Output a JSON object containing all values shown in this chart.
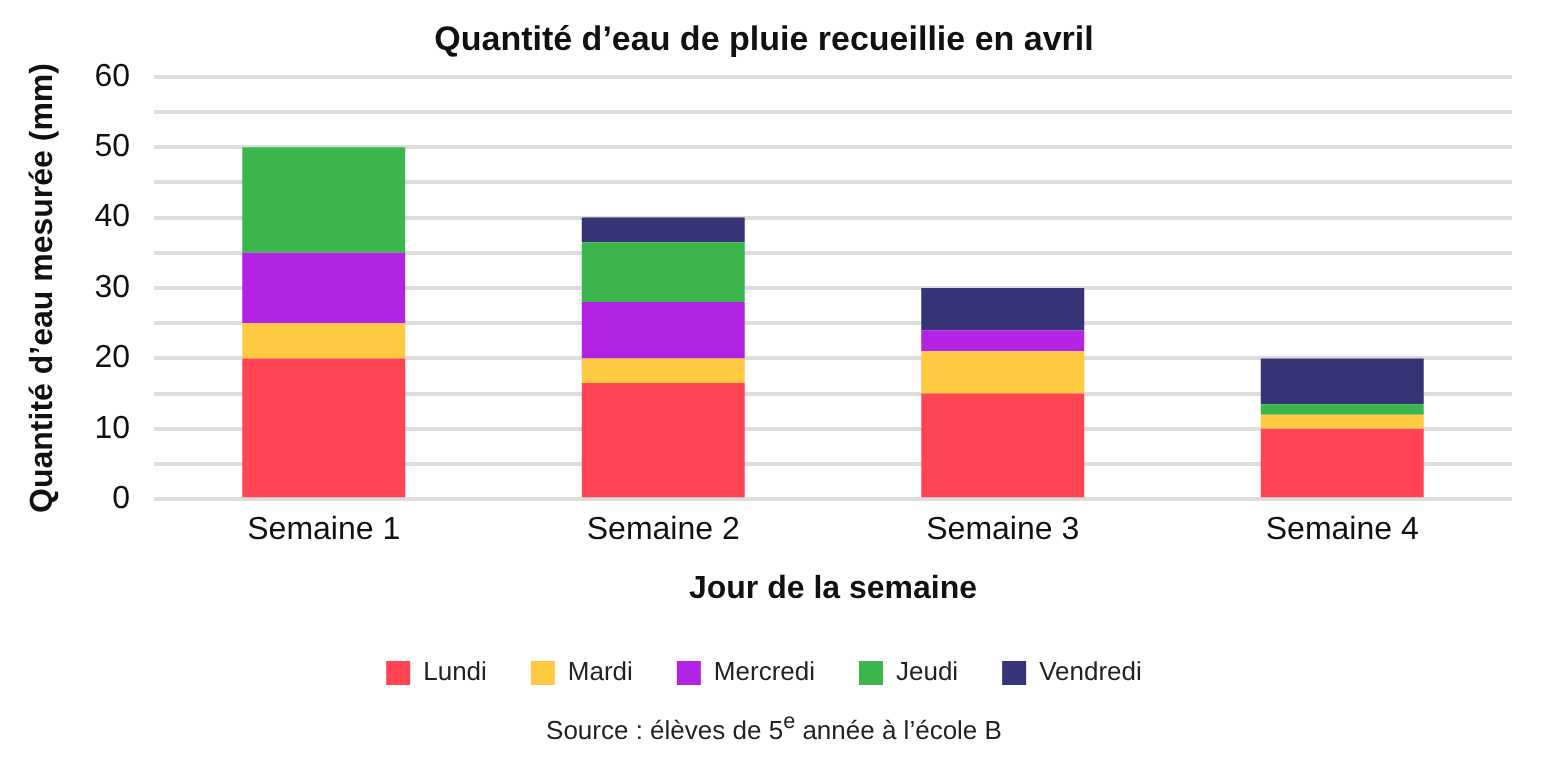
{
  "chart_data": {
    "type": "bar",
    "stacked": true,
    "title": "Quantité d’eau de pluie recueillie en avril",
    "xlabel": "Jour de la semaine",
    "ylabel": "Quantité d’eau mesurée (mm)",
    "categories": [
      "Semaine 1",
      "Semaine 2",
      "Semaine 3",
      "Semaine 4"
    ],
    "series": [
      {
        "name": "Lundi",
        "color": "#ff4554",
        "values": [
          20,
          16.5,
          15,
          10
        ]
      },
      {
        "name": "Mardi",
        "color": "#ffc942",
        "values": [
          5,
          3.5,
          6,
          2
        ]
      },
      {
        "name": "Mercredi",
        "color": "#b323e3",
        "values": [
          10,
          8,
          3,
          0
        ]
      },
      {
        "name": "Jeudi",
        "color": "#3cb64c",
        "values": [
          15,
          8.5,
          0,
          1.5
        ]
      },
      {
        "name": "Vendredi",
        "color": "#363377",
        "values": [
          0,
          3.5,
          6,
          6.5
        ]
      }
    ],
    "ylim": [
      0,
      60
    ],
    "yticks": [
      0,
      {
        "value": 5,
        "label": null
      },
      10,
      {
        "value": 15,
        "label": null
      },
      20,
      {
        "value": 25,
        "label": null
      },
      30,
      {
        "value": 35,
        "label": null
      },
      40,
      {
        "value": 45,
        "label": null
      },
      50,
      {
        "value": 55,
        "label": null
      },
      60
    ],
    "grid": "y",
    "legend": "bottom",
    "annotations": [
      "Source : élèves de 5$^{e}$ année à l’école B"
    ]
  }
}
